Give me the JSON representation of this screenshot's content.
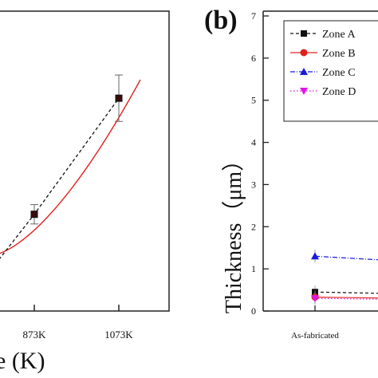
{
  "chart_data": [
    {
      "panel": "(a) partial",
      "type": "line",
      "xlabel_fragment": "e (K)",
      "x_ticks": [
        "873K",
        "1073K"
      ],
      "series": [
        {
          "style": "dashed-black-square",
          "points": [
            {
              "x": "873K",
              "y": 0.5,
              "err": 0.05
            },
            {
              "x": "1073K",
              "y": 1.1,
              "err": 0.12
            }
          ]
        },
        {
          "style": "solid-red-fit",
          "points": []
        }
      ],
      "colors": {
        "dashed": "#111111",
        "fit": "#e0201c",
        "marker": "#111111"
      }
    },
    {
      "panel": "(b)",
      "type": "line",
      "ylabel": "Thickness（μm）",
      "ylim": [
        0,
        7
      ],
      "y_ticks": [
        "0",
        "1",
        "2",
        "3",
        "4",
        "5",
        "6",
        "7"
      ],
      "x_ticks": [
        "As-fabricated"
      ],
      "legend_position": "top-right",
      "series": [
        {
          "name": "Zone A",
          "color": "#111111",
          "marker": "square",
          "line": "dashed",
          "values": [
            0.45
          ]
        },
        {
          "name": "Zone B",
          "color": "#e0201c",
          "marker": "circle",
          "line": "solid",
          "values": [
            0.33
          ]
        },
        {
          "name": "Zone C",
          "color": "#1a1adb",
          "marker": "triangle-up",
          "line": "dash-dot",
          "values": [
            1.3
          ]
        },
        {
          "name": "Zone D",
          "color": "#e016e0",
          "marker": "triangle-down",
          "line": "dotted",
          "values": [
            0.3
          ]
        }
      ]
    }
  ],
  "panel_b_label": "(b)"
}
